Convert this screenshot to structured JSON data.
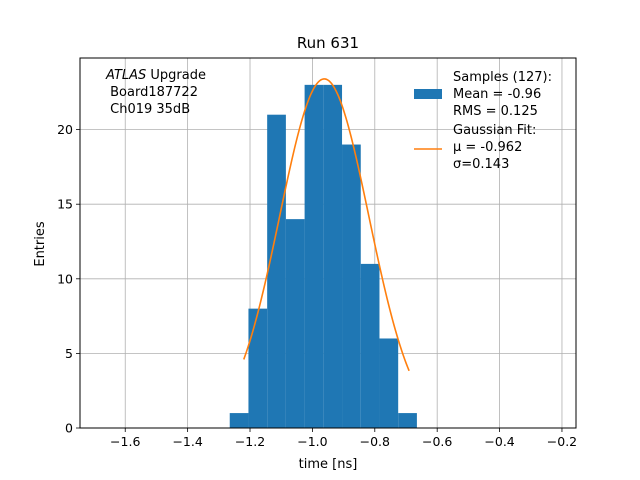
{
  "chart_data": {
    "type": "bar",
    "title": "Run 631",
    "xlabel": "time [ns]",
    "ylabel": "Entries",
    "xlim": [
      -1.745,
      -0.155
    ],
    "ylim": [
      0,
      24.8
    ],
    "grid": true,
    "legend_position": "top-right",
    "xticks": [
      -1.6,
      -1.4,
      -1.2,
      -1.0,
      -0.8,
      -0.6,
      -0.4,
      -0.2
    ],
    "xtick_labels": [
      "−1.6",
      "−1.4",
      "−1.2",
      "−1.0",
      "−0.8",
      "−0.6",
      "−0.4",
      "−0.2"
    ],
    "yticks": [
      0,
      5,
      10,
      15,
      20
    ],
    "ytick_labels": [
      "0",
      "5",
      "10",
      "15",
      "20"
    ],
    "annotation": {
      "line1_italic": "ATLAS",
      "line1_rest": " Upgrade",
      "line2": " Board187722",
      "line3": " Ch019 35dB"
    },
    "series": [
      {
        "name": "Samples (127):",
        "name_lines": [
          "Samples (127):",
          " Mean = -0.96",
          " RMS = 0.125"
        ],
        "type": "histogram",
        "color": "#1f77b4",
        "bin_edges": [
          -1.265,
          -1.205,
          -1.145,
          -1.085,
          -1.025,
          -0.965,
          -0.905,
          -0.845,
          -0.785,
          -0.725,
          -0.665,
          -0.605
        ],
        "counts": [
          1,
          8,
          21,
          14,
          23,
          23,
          19,
          11,
          6,
          1,
          0
        ]
      },
      {
        "name": "Gaussian Fit:",
        "name_lines": [
          "Gaussian Fit:",
          " μ = -0.962",
          " σ=0.143"
        ],
        "type": "line",
        "color": "#ff7f0e",
        "mu": -0.962,
        "sigma": 0.143,
        "amplitude": 23.4,
        "x_range": [
          -1.22,
          -0.69
        ]
      }
    ]
  }
}
